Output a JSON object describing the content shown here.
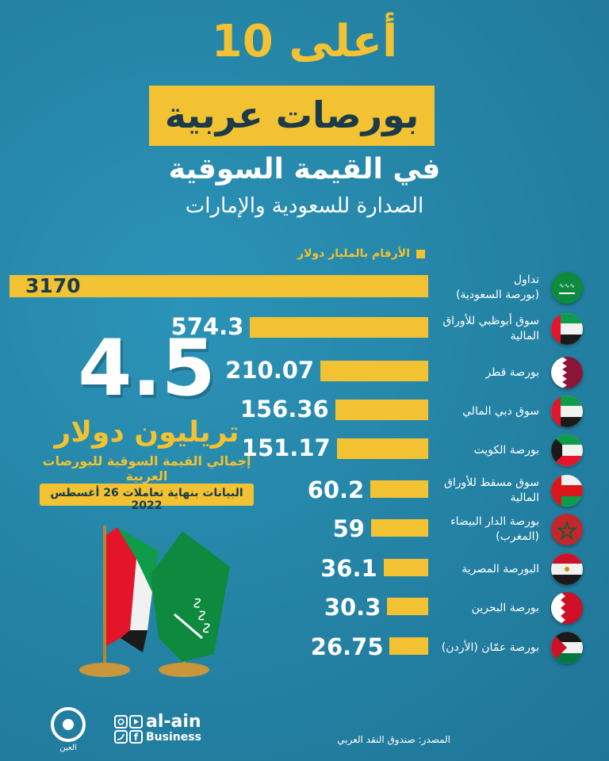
{
  "header": {
    "line1": "أعلى 10",
    "line2": "بورصات عربية",
    "line3": "في القيمة السوقية",
    "subtitle": "الصدارة للسعودية والإمارات"
  },
  "legend": "الأرقام بالمليار دولار",
  "total": {
    "value": "4.5",
    "unit": "تريليون دولار",
    "description": "إجمالي القيمة السوقية للبورصات العربية",
    "date_note": "البيانات بنهاية تعاملات 26 أغسطس 2022"
  },
  "chart_data": {
    "type": "bar",
    "orientation": "horizontal",
    "unit": "الأرقام بالمليار دولار",
    "categories": [
      {
        "line1": "تداول",
        "line2": "(بورصة السعودية)",
        "flag": "saudi-flag-icon"
      },
      {
        "line1": "سوق أبوظبي للأوراق",
        "line2": "المالية",
        "flag": "uae-flag-icon"
      },
      {
        "line1": "بورصة قطر",
        "line2": "",
        "flag": "qatar-flag-icon"
      },
      {
        "line1": "سوق دبي المالي",
        "line2": "",
        "flag": "uae-flag-icon"
      },
      {
        "line1": "بورصة الكويت",
        "line2": "",
        "flag": "kuwait-flag-icon"
      },
      {
        "line1": "سوق مسقط للأوراق",
        "line2": "المالية",
        "flag": "oman-flag-icon"
      },
      {
        "line1": "بورصة الدار البيضاء",
        "line2": "(المغرب)",
        "flag": "morocco-flag-icon"
      },
      {
        "line1": "البورصة المصرية",
        "line2": "",
        "flag": "egypt-flag-icon"
      },
      {
        "line1": "بورصة البحرين",
        "line2": "",
        "flag": "bahrain-flag-icon"
      },
      {
        "line1": "بورصة عمّان (الأردن)",
        "line2": "",
        "flag": "jordan-flag-icon"
      }
    ],
    "values": [
      3170,
      574.3,
      210.07,
      156.36,
      151.17,
      60.2,
      59,
      36.1,
      30.3,
      26.75
    ],
    "value_labels": [
      "3170",
      "574.3",
      "210.07",
      "156.36",
      "151.17",
      "60.2",
      "59",
      "36.1",
      "30.3",
      "26.75"
    ],
    "bar_color": "#f2c232",
    "first_label_color": "#1b3a4a"
  },
  "brand": {
    "name": "al-ain",
    "sub": "Business",
    "logo_text": "العين"
  },
  "source": "المصدر: صندوق النقد العربي",
  "colors": {
    "background": "#2585a7",
    "accent": "#f2c232",
    "dark": "#1b3a4a"
  }
}
